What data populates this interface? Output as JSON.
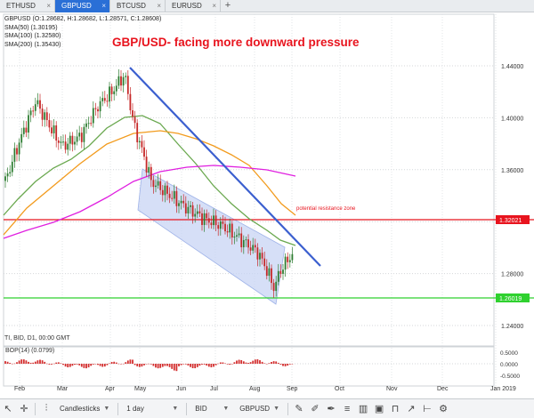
{
  "tabs": [
    {
      "label": "ETHUSD",
      "active": false
    },
    {
      "label": "GBPUSD",
      "active": true
    },
    {
      "label": "BTCUSD",
      "active": false
    },
    {
      "label": "EURUSD",
      "active": false
    }
  ],
  "tab_close_glyph": "×",
  "tab_add_glyph": "+",
  "header": {
    "title": "GBP/USD- facing more downward pressure",
    "ohlc": "GBPUSD (O:1.28682, H:1.28682, L:1.28571, C:1.28608)",
    "sma50": "SMA(50) (1.30195)",
    "sma100": "SMA(100) (1.32580)",
    "sma200": "SMA(200) (1.35430)"
  },
  "annotation": "potential resistance zone",
  "footer_label": "TI, BID, D1, 00:00 GMT",
  "bop_label": "BOP(14) (0.0799)",
  "colors": {
    "accent_tab": "#2a6fd6",
    "title_red": "#e8141e",
    "resistance": "#e8141e",
    "support": "#2fd12f",
    "trendline": "#3b5fcf",
    "sma50": "#6aa84f",
    "sma100": "#f29b1d",
    "sma200": "#e020e0",
    "channel_fill": "#c8d4f4"
  },
  "toolbar": {
    "icons": [
      "pointer-icon",
      "crosshair-icon",
      "bar-style-icon"
    ],
    "chart_type": "Candlesticks",
    "timeframe": "1 day",
    "price": "BID",
    "symbol": "GBPUSD",
    "tool_icons": [
      "pencil-icon",
      "brush-icon",
      "pen-icon",
      "text-icon",
      "settings-icon",
      "columns-icon",
      "layout-icon",
      "magnet-icon",
      "ruler-icon",
      "trend-icon",
      "gear-icon"
    ]
  },
  "chart_data": [
    {
      "type": "candlestick",
      "yticks": [
        "1.44000",
        "1.40000",
        "1.36000",
        "1.32000",
        "1.28000",
        "1.24000"
      ],
      "ylim": [
        1.22,
        1.47
      ],
      "xticks": [
        "Feb",
        "Mar",
        "Apr",
        "May",
        "Jun",
        "Jul",
        "Aug",
        "Sep",
        "Oct",
        "Nov",
        "Dec",
        "Jan 2019"
      ],
      "price_labels": [
        {
          "value": 1.32021,
          "label": "1.32021",
          "color": "#e8141e"
        },
        {
          "value": 1.26019,
          "label": "1.26019",
          "color": "#2fd12f"
        }
      ],
      "last_price": 1.28608,
      "series": [
        {
          "name": "SMA(50)",
          "value_last": 1.30195
        },
        {
          "name": "SMA(100)",
          "value_last": 1.3258
        },
        {
          "name": "SMA(200)",
          "value_last": 1.3543
        }
      ]
    },
    {
      "type": "bar",
      "name": "BOP(14)",
      "yticks": [
        "0.5000",
        "0.0000",
        "-0.5000"
      ],
      "ylim": [
        -0.75,
        0.75
      ],
      "last_value": 0.0799
    }
  ]
}
